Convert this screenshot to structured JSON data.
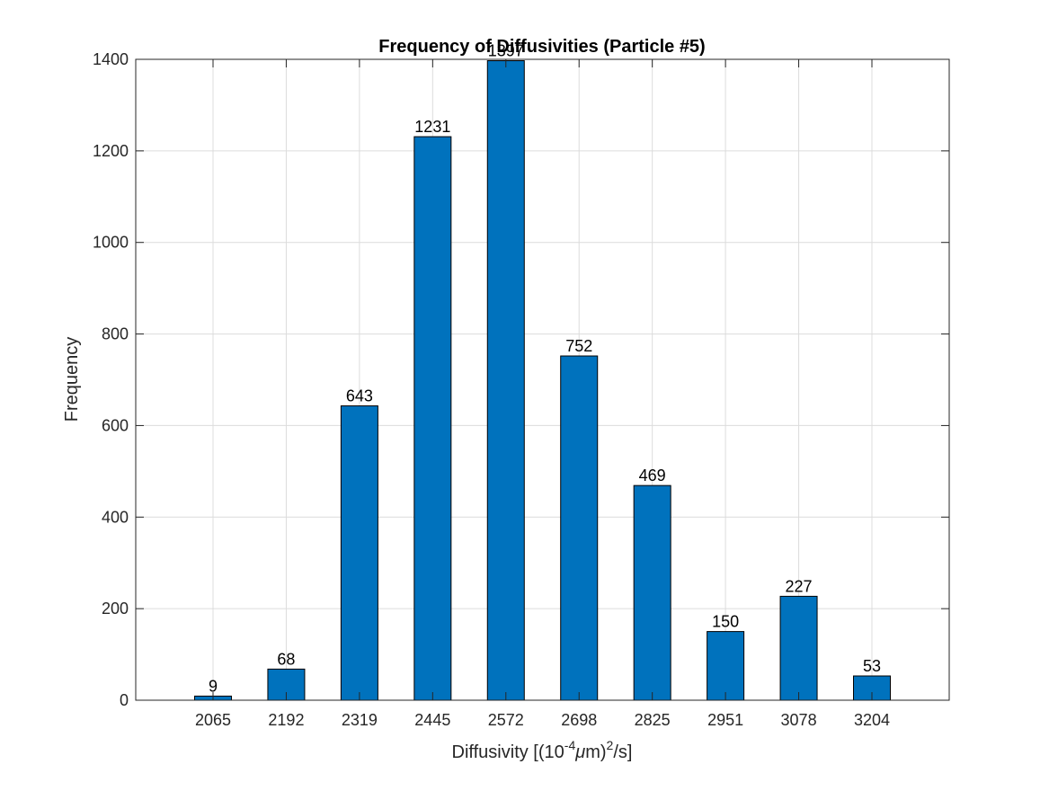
{
  "chart_data": {
    "type": "bar",
    "title": "Frequency of Diffusivities (Particle #5)",
    "xlabel": {
      "prefix": "Diffusivity [(10",
      "exponent": "-4",
      "unit_mu": "μ",
      "unit_m": "m)",
      "exponent2": "2",
      "suffix": "/s]"
    },
    "ylabel": "Frequency",
    "categories": [
      "2065",
      "2192",
      "2319",
      "2445",
      "2572",
      "2698",
      "2825",
      "2951",
      "3078",
      "3204"
    ],
    "values": [
      9,
      68,
      643,
      1231,
      1397,
      752,
      469,
      150,
      227,
      53
    ],
    "ylim": [
      0,
      1400
    ],
    "yticks": [
      0,
      200,
      400,
      600,
      800,
      1000,
      1200,
      1400
    ],
    "grid": true,
    "bar_color": "#0072BD"
  }
}
